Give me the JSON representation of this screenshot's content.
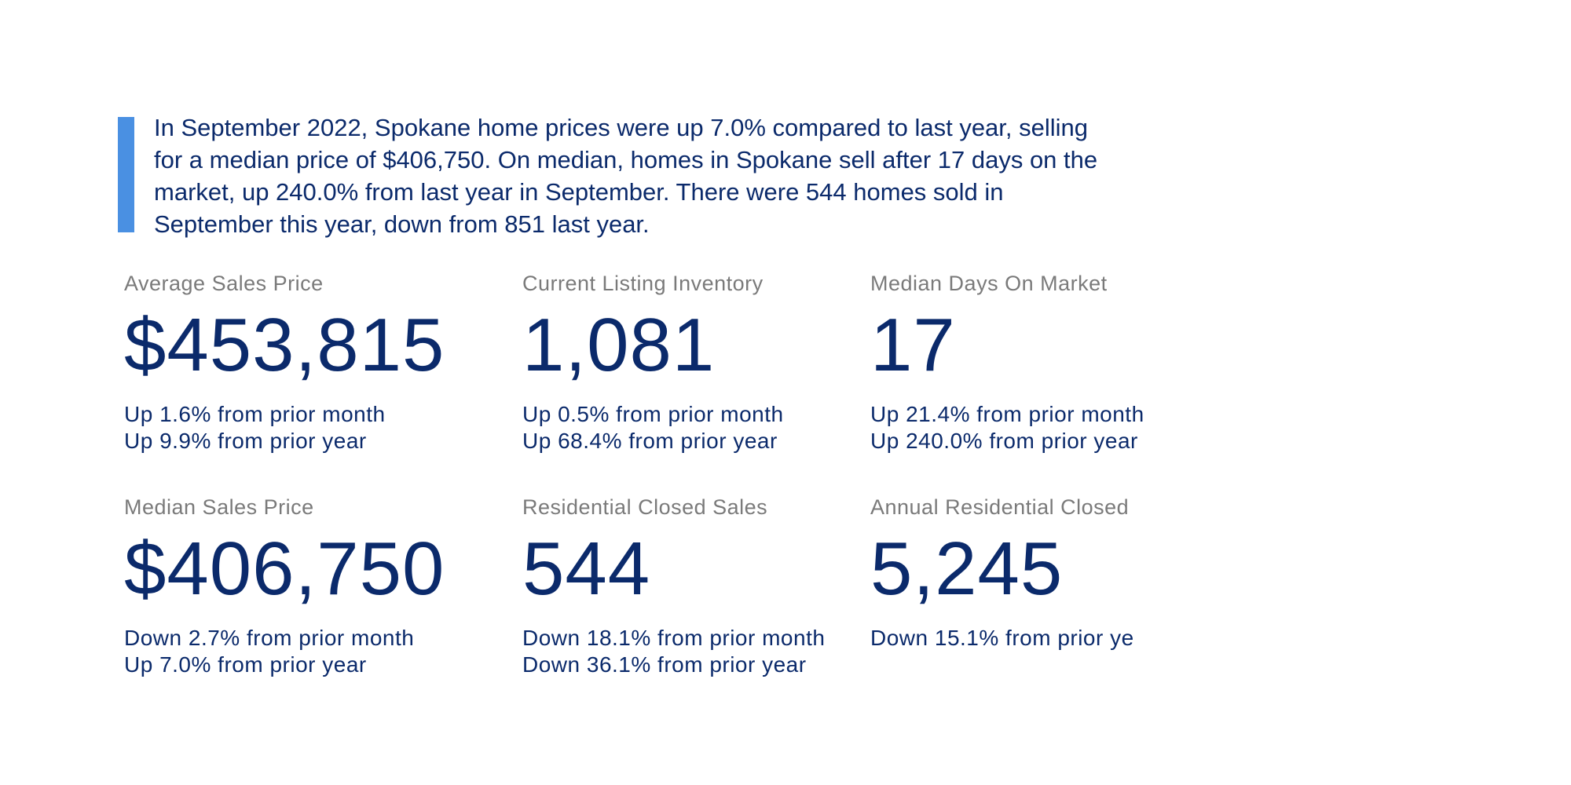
{
  "summary": "In September 2022, Spokane home prices were up 7.0% compared to last year, selling for a median price of $406,750. On median, homes in Spokane sell after 17 days on the market, up 240.0% from last year in September. There were 544 homes sold in September this year, down from 851 last year.",
  "cards": [
    {
      "label": "Average Sales Price",
      "value": "$453,815",
      "lines": [
        "Up 1.6% from prior month",
        "Up 9.9% from prior year"
      ]
    },
    {
      "label": "Current Listing Inventory",
      "value": "1,081",
      "lines": [
        "Up 0.5% from prior month",
        "Up 68.4% from prior year"
      ]
    },
    {
      "label": "Median Days On Market",
      "value": "17",
      "lines": [
        "Up 21.4% from prior month",
        "Up 240.0% from prior year"
      ]
    },
    {
      "label": "Median Sales Price",
      "value": "$406,750",
      "lines": [
        "Down 2.7% from prior month",
        "Up 7.0% from prior year"
      ]
    },
    {
      "label": "Residential Closed Sales",
      "value": "544",
      "lines": [
        "Down 18.1% from prior month",
        "Down 36.1% from prior year"
      ]
    },
    {
      "label": "Annual Residential Closed",
      "value": "5,245",
      "lines": [
        "Down 15.1% from prior ye"
      ]
    }
  ]
}
